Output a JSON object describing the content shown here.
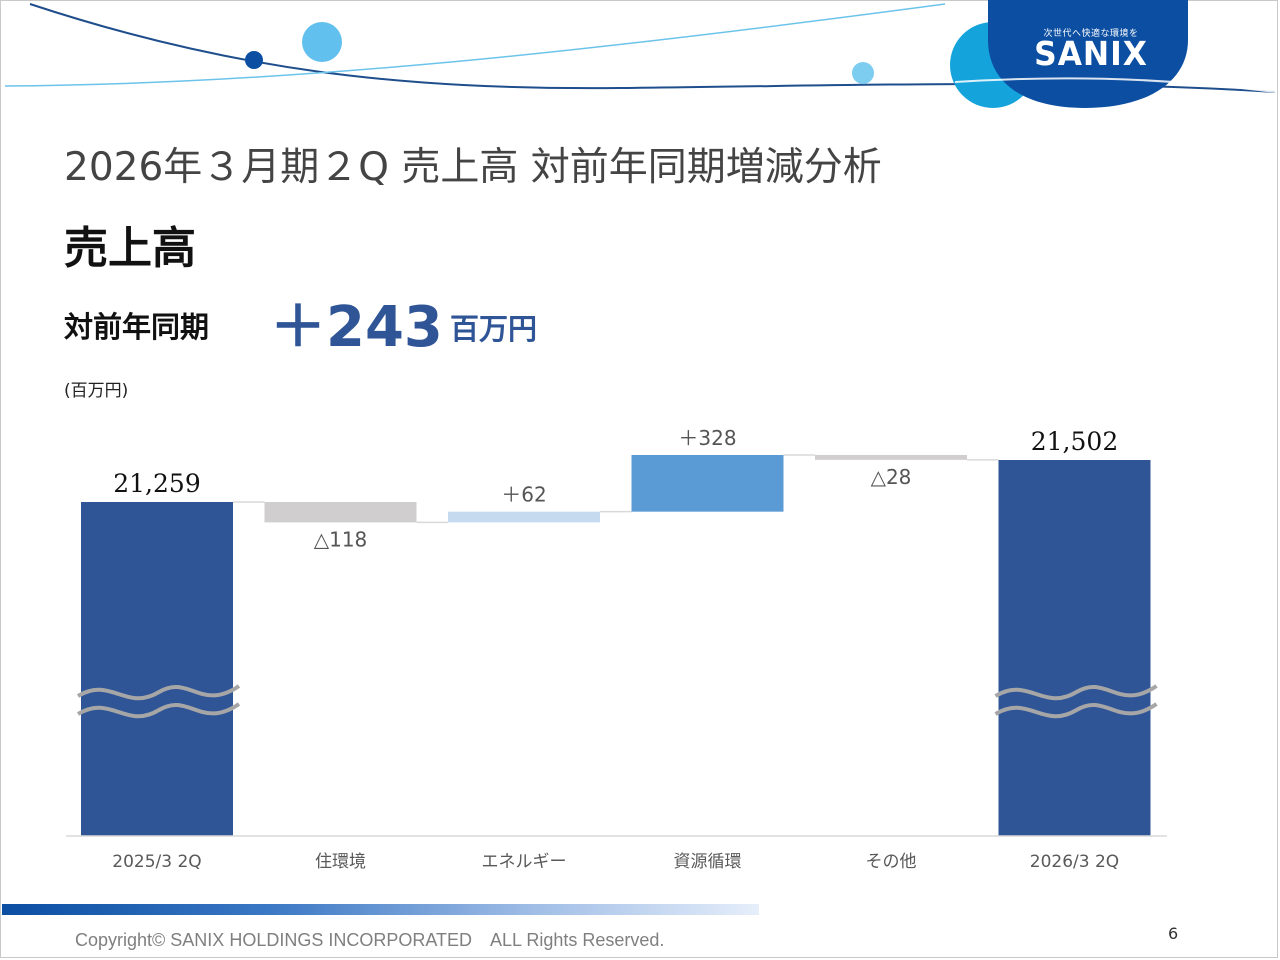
{
  "brand": {
    "tagline": "次世代へ快適な環境を",
    "name": "SANIX"
  },
  "slide": {
    "title": "2026年３月期２Q 売上高 対前年同期増減分析",
    "heading": "売上高",
    "yoy_label": "対前年同期",
    "yoy_value": "＋243",
    "yoy_unit": "百万円",
    "unit_note": "(百万円)"
  },
  "chart_data": {
    "type": "bar",
    "subtype": "waterfall",
    "unit": "百万円",
    "categories": [
      "2025/3 2Q",
      "住環境",
      "エネルギー",
      "資源循環",
      "その他",
      "2026/3 2Q"
    ],
    "values": [
      21259,
      -118,
      62,
      328,
      -28,
      21502
    ],
    "kinds": [
      "total",
      "delta",
      "delta",
      "delta",
      "delta",
      "total"
    ],
    "data_labels": [
      "21,259",
      "△118",
      "＋62",
      "＋328",
      "△28",
      "21,502"
    ],
    "colors": {
      "total": "#2f5597",
      "negative": "#d0cece",
      "positive_small": "#c5d9ef",
      "positive_large": "#5b9bd5",
      "connector": "#d9d9d9",
      "axis": "#d9d9d9",
      "break_mark": "#a6a6a6"
    },
    "y_axis_break": true,
    "grid": false,
    "legend": "none"
  },
  "footer": {
    "copyright": "Copyright© SANIX HOLDINGS INCORPORATED　ALL Rights Reserved.",
    "page": "6"
  }
}
